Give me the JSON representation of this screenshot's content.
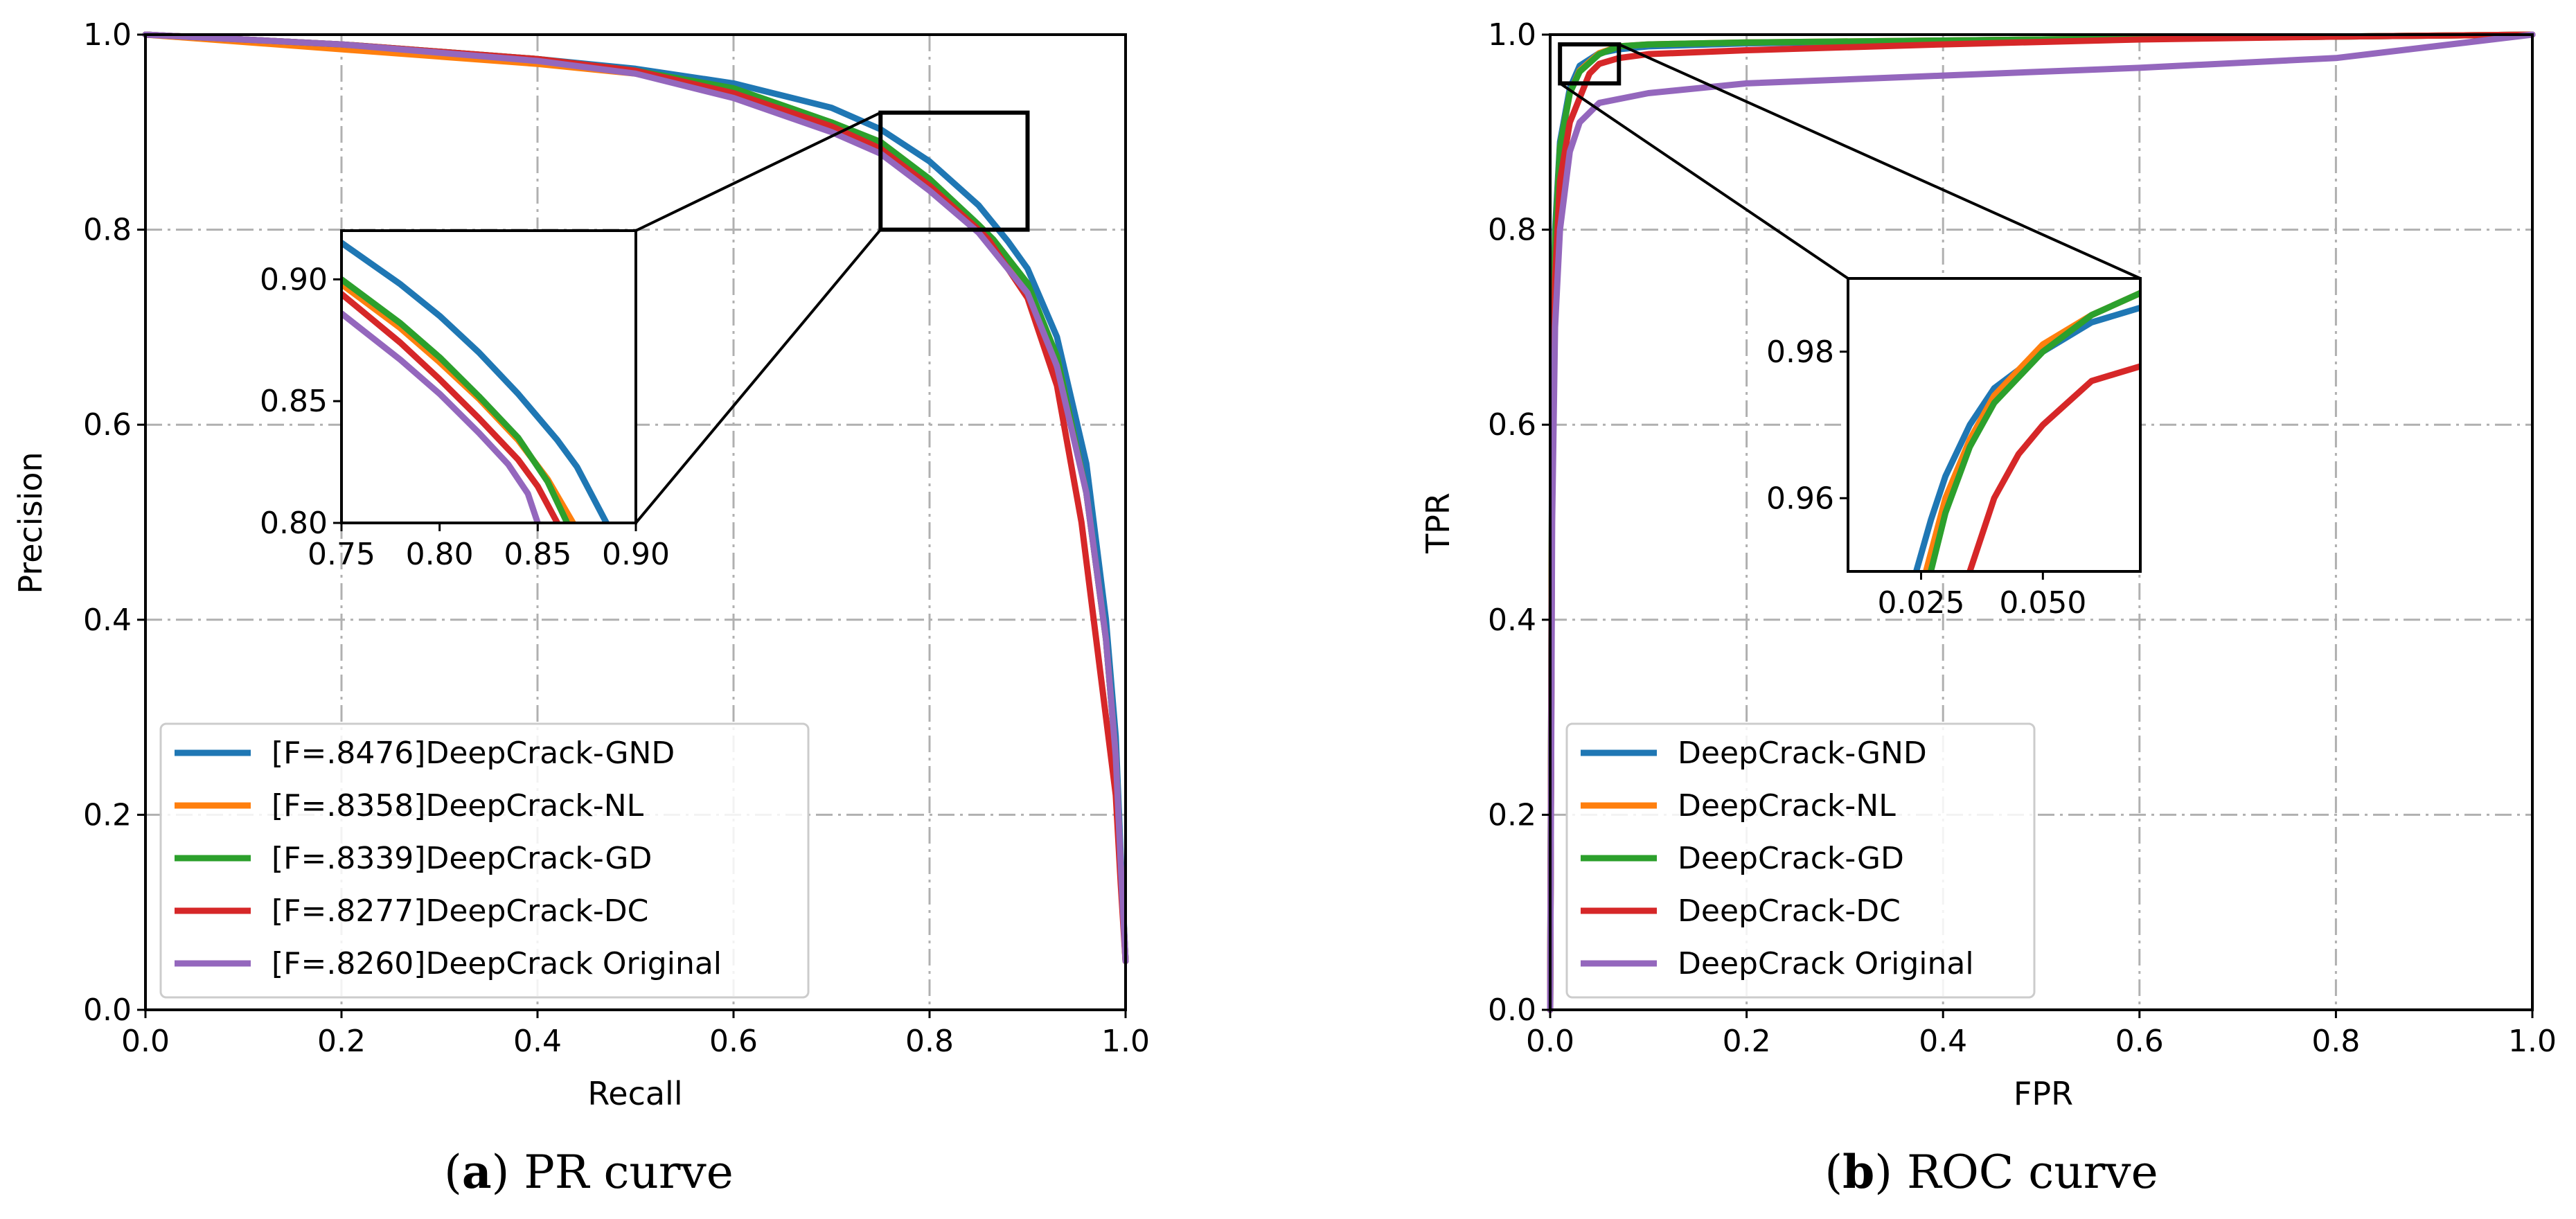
{
  "colors": {
    "gnd": "#1f77b4",
    "nl": "#ff7f0e",
    "gd": "#2ca02c",
    "dc": "#d62728",
    "orig": "#9467bd",
    "grid": "#b0b0b0"
  },
  "chart_data": [
    {
      "id": "pr",
      "type": "line",
      "title": "",
      "xlabel": "Recall",
      "ylabel": "Precision",
      "xlim": [
        0,
        1
      ],
      "ylim": [
        0,
        1
      ],
      "xticks": [
        "0.0",
        "0.2",
        "0.4",
        "0.6",
        "0.8",
        "1.0"
      ],
      "yticks": [
        "0.0",
        "0.2",
        "0.4",
        "0.6",
        "0.8",
        "1.0"
      ],
      "grid": true,
      "legend_position": "lower-left",
      "caption_prefix": "(",
      "caption_letter": "a",
      "caption_text": ") PR curve",
      "series": [
        {
          "key": "gnd",
          "name": "[F=.8476]DeepCrack-GND",
          "x": [
            0,
            0.2,
            0.4,
            0.5,
            0.6,
            0.7,
            0.75,
            0.8,
            0.85,
            0.88,
            0.9,
            0.93,
            0.96,
            0.98,
            0.99,
            0.995,
            1.0
          ],
          "y": [
            1.0,
            0.99,
            0.975,
            0.965,
            0.95,
            0.925,
            0.903,
            0.87,
            0.825,
            0.788,
            0.76,
            0.69,
            0.56,
            0.4,
            0.28,
            0.16,
            0.05
          ]
        },
        {
          "key": "nl",
          "name": "[F=.8358]DeepCrack-NL",
          "x": [
            0,
            0.2,
            0.4,
            0.5,
            0.6,
            0.7,
            0.75,
            0.8,
            0.85,
            0.87,
            0.9,
            0.93,
            0.96,
            0.98,
            0.99,
            0.995,
            1.0
          ],
          "y": [
            1.0,
            0.985,
            0.97,
            0.96,
            0.94,
            0.91,
            0.887,
            0.852,
            0.8,
            0.78,
            0.74,
            0.67,
            0.53,
            0.38,
            0.26,
            0.15,
            0.05
          ]
        },
        {
          "key": "gd",
          "name": "[F=.8339]DeepCrack-GD",
          "x": [
            0,
            0.2,
            0.4,
            0.5,
            0.6,
            0.7,
            0.75,
            0.8,
            0.85,
            0.865,
            0.9,
            0.93,
            0.96,
            0.98,
            0.99,
            0.995,
            1.0
          ],
          "y": [
            1.0,
            0.99,
            0.975,
            0.963,
            0.945,
            0.91,
            0.89,
            0.852,
            0.805,
            0.79,
            0.745,
            0.67,
            0.53,
            0.38,
            0.26,
            0.15,
            0.05
          ]
        },
        {
          "key": "dc",
          "name": "[F=.8277]DeepCrack-DC",
          "x": [
            0,
            0.2,
            0.4,
            0.5,
            0.6,
            0.7,
            0.75,
            0.8,
            0.85,
            0.86,
            0.9,
            0.93,
            0.955,
            0.975,
            0.99,
            0.995,
            1.0
          ],
          "y": [
            1.0,
            0.99,
            0.975,
            0.963,
            0.94,
            0.906,
            0.883,
            0.845,
            0.8,
            0.79,
            0.73,
            0.64,
            0.5,
            0.34,
            0.22,
            0.13,
            0.05
          ]
        },
        {
          "key": "orig",
          "name": "[F=.8260]DeepCrack Original",
          "x": [
            0,
            0.2,
            0.4,
            0.5,
            0.6,
            0.7,
            0.75,
            0.8,
            0.85,
            0.9,
            0.93,
            0.96,
            0.98,
            0.99,
            0.995,
            1.0
          ],
          "y": [
            1.0,
            0.99,
            0.973,
            0.96,
            0.935,
            0.9,
            0.878,
            0.84,
            0.797,
            0.735,
            0.66,
            0.53,
            0.38,
            0.26,
            0.15,
            0.05
          ]
        }
      ],
      "inset": {
        "xlim": [
          0.75,
          0.9
        ],
        "ylim": [
          0.8,
          0.92
        ],
        "xticks": [
          "0.75",
          "0.80",
          "0.85",
          "0.90"
        ],
        "yticks": [
          "0.80",
          "0.85",
          "0.90"
        ],
        "series": [
          {
            "key": "gnd",
            "x": [
              0.75,
              0.78,
              0.8,
              0.82,
              0.84,
              0.86,
              0.87,
              0.885
            ],
            "y": [
              0.915,
              0.898,
              0.885,
              0.87,
              0.853,
              0.834,
              0.823,
              0.8
            ]
          },
          {
            "key": "nl",
            "x": [
              0.75,
              0.78,
              0.8,
              0.82,
              0.84,
              0.855,
              0.868
            ],
            "y": [
              0.898,
              0.88,
              0.866,
              0.851,
              0.834,
              0.818,
              0.8
            ]
          },
          {
            "key": "gd",
            "x": [
              0.75,
              0.78,
              0.8,
              0.82,
              0.84,
              0.855,
              0.865
            ],
            "y": [
              0.9,
              0.882,
              0.868,
              0.852,
              0.835,
              0.817,
              0.8
            ]
          },
          {
            "key": "dc",
            "x": [
              0.75,
              0.78,
              0.8,
              0.82,
              0.84,
              0.85,
              0.86
            ],
            "y": [
              0.894,
              0.874,
              0.859,
              0.843,
              0.826,
              0.815,
              0.8
            ]
          },
          {
            "key": "orig",
            "x": [
              0.75,
              0.78,
              0.8,
              0.82,
              0.835,
              0.845,
              0.85
            ],
            "y": [
              0.886,
              0.867,
              0.853,
              0.837,
              0.824,
              0.812,
              0.8
            ]
          }
        ]
      }
    },
    {
      "id": "roc",
      "type": "line",
      "title": "",
      "xlabel": "FPR",
      "ylabel": "TPR",
      "xlim": [
        0,
        1
      ],
      "ylim": [
        0,
        1
      ],
      "xticks": [
        "0.0",
        "0.2",
        "0.4",
        "0.6",
        "0.8",
        "1.0"
      ],
      "yticks": [
        "0.0",
        "0.2",
        "0.4",
        "0.6",
        "0.8",
        "1.0"
      ],
      "grid": true,
      "legend_position": "lower-left",
      "caption_prefix": "(",
      "caption_letter": "b",
      "caption_text": ") ROC curve",
      "series": [
        {
          "key": "gnd",
          "name": "DeepCrack-GND",
          "x": [
            0,
            0.002,
            0.005,
            0.01,
            0.02,
            0.03,
            0.05,
            0.07,
            0.1,
            0.2,
            0.4,
            0.6,
            0.8,
            1.0
          ],
          "y": [
            0,
            0.6,
            0.8,
            0.89,
            0.945,
            0.968,
            0.981,
            0.985,
            0.988,
            0.991,
            0.994,
            0.996,
            0.998,
            1.0
          ]
        },
        {
          "key": "nl",
          "name": "DeepCrack-NL",
          "x": [
            0,
            0.002,
            0.005,
            0.01,
            0.02,
            0.03,
            0.05,
            0.07,
            0.1,
            0.2,
            0.4,
            0.6,
            0.8,
            1.0
          ],
          "y": [
            0,
            0.58,
            0.79,
            0.885,
            0.94,
            0.963,
            0.981,
            0.988,
            0.99,
            0.992,
            0.994,
            0.996,
            0.998,
            1.0
          ]
        },
        {
          "key": "gd",
          "name": "DeepCrack-GD",
          "x": [
            0,
            0.002,
            0.005,
            0.01,
            0.02,
            0.03,
            0.05,
            0.07,
            0.1,
            0.2,
            0.4,
            0.6,
            0.8,
            1.0
          ],
          "y": [
            0,
            0.58,
            0.79,
            0.885,
            0.94,
            0.962,
            0.98,
            0.988,
            0.99,
            0.992,
            0.994,
            0.996,
            0.998,
            1.0
          ]
        },
        {
          "key": "dc",
          "name": "DeepCrack-DC",
          "x": [
            0,
            0.002,
            0.005,
            0.01,
            0.02,
            0.03,
            0.04,
            0.05,
            0.07,
            0.1,
            0.2,
            0.4,
            0.6,
            0.8,
            1.0
          ],
          "y": [
            0,
            0.55,
            0.75,
            0.85,
            0.91,
            0.935,
            0.96,
            0.97,
            0.976,
            0.98,
            0.984,
            0.99,
            0.995,
            0.998,
            1.0
          ]
        },
        {
          "key": "orig",
          "name": "DeepCrack Original",
          "x": [
            0,
            0.002,
            0.005,
            0.01,
            0.02,
            0.03,
            0.05,
            0.1,
            0.2,
            0.4,
            0.6,
            0.8,
            1.0
          ],
          "y": [
            0,
            0.5,
            0.7,
            0.8,
            0.88,
            0.91,
            0.93,
            0.94,
            0.95,
            0.958,
            0.966,
            0.976,
            1.0
          ]
        }
      ],
      "inset": {
        "xlim": [
          0.01,
          0.07
        ],
        "ylim": [
          0.95,
          0.99
        ],
        "xticks_values": [
          0.025,
          0.05
        ],
        "xticks": [
          "0.025",
          "0.050"
        ],
        "yticks_values": [
          0.96,
          0.98
        ],
        "yticks": [
          "0.96",
          "0.98"
        ],
        "series": [
          {
            "key": "gnd",
            "x": [
              0.024,
              0.027,
              0.03,
              0.035,
              0.04,
              0.05,
              0.06,
              0.07
            ],
            "y": [
              0.95,
              0.957,
              0.963,
              0.97,
              0.975,
              0.98,
              0.984,
              0.986
            ]
          },
          {
            "key": "nl",
            "x": [
              0.026,
              0.03,
              0.035,
              0.04,
              0.05,
              0.06,
              0.07
            ],
            "y": [
              0.95,
              0.96,
              0.968,
              0.974,
              0.981,
              0.985,
              0.988
            ]
          },
          {
            "key": "gd",
            "x": [
              0.027,
              0.03,
              0.035,
              0.04,
              0.05,
              0.06,
              0.07
            ],
            "y": [
              0.95,
              0.958,
              0.967,
              0.973,
              0.98,
              0.985,
              0.988
            ]
          },
          {
            "key": "dc",
            "x": [
              0.035,
              0.04,
              0.045,
              0.05,
              0.055,
              0.06,
              0.065,
              0.07
            ],
            "y": [
              0.95,
              0.96,
              0.966,
              0.97,
              0.973,
              0.976,
              0.977,
              0.978
            ]
          }
        ]
      }
    }
  ]
}
